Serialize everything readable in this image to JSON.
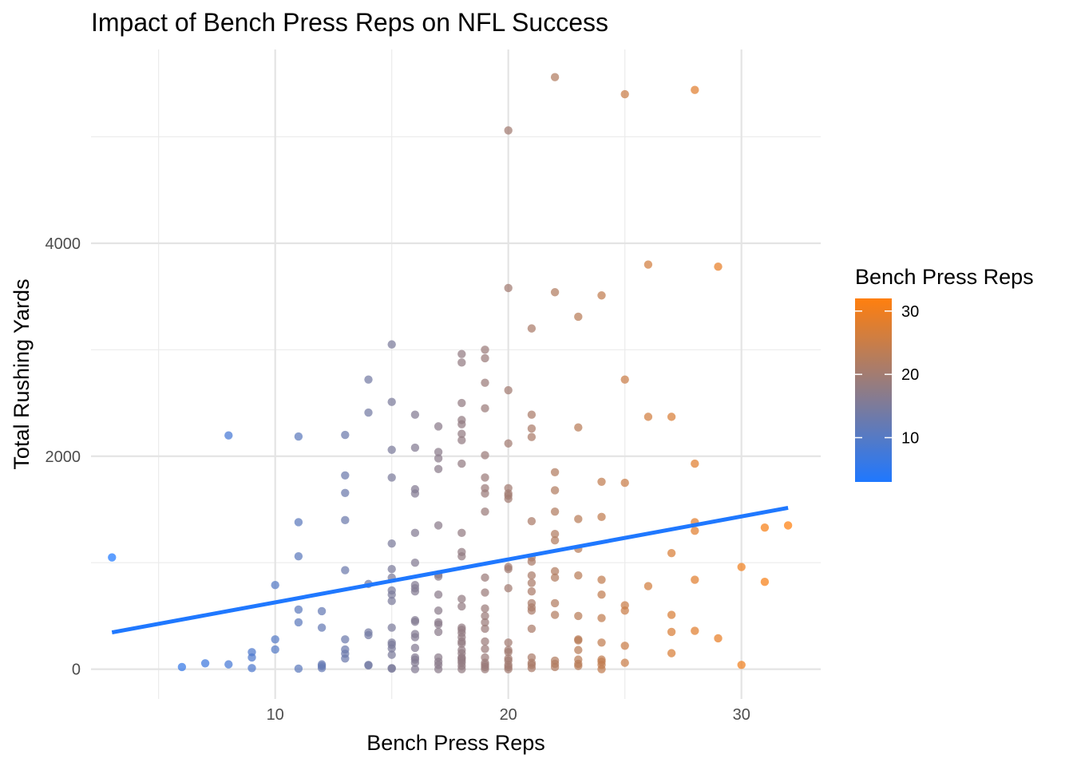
{
  "chart_data": {
    "type": "scatter",
    "title": "Impact of Bench Press Reps on NFL Success",
    "xlabel": "Bench Press Reps",
    "ylabel": "Total Rushing Yards",
    "xlim": [
      2.1,
      33.4
    ],
    "ylim": [
      -280,
      5820
    ],
    "x_ticks": [
      10,
      20,
      30
    ],
    "y_ticks": [
      0,
      2000,
      4000
    ],
    "grid": true,
    "legend": {
      "title": "Bench Press Reps",
      "position": "right",
      "ticks": [
        10,
        20,
        30
      ],
      "range": [
        3,
        32
      ],
      "color_low": "#1f78ff",
      "color_high": "#ff7f0e"
    },
    "trend_line": {
      "color": "#1f78ff",
      "x": [
        3,
        32
      ],
      "y": [
        345,
        1515
      ]
    },
    "points": [
      [
        3,
        1050
      ],
      [
        6,
        20
      ],
      [
        7,
        55
      ],
      [
        8,
        45
      ],
      [
        8,
        2195
      ],
      [
        9,
        10
      ],
      [
        9,
        110
      ],
      [
        9,
        160
      ],
      [
        10,
        280
      ],
      [
        10,
        185
      ],
      [
        10,
        790
      ],
      [
        11,
        5
      ],
      [
        11,
        440
      ],
      [
        11,
        560
      ],
      [
        11,
        1060
      ],
      [
        11,
        1380
      ],
      [
        11,
        2185
      ],
      [
        12,
        10
      ],
      [
        12,
        30
      ],
      [
        12,
        45
      ],
      [
        12,
        390
      ],
      [
        12,
        545
      ],
      [
        13,
        100
      ],
      [
        13,
        145
      ],
      [
        13,
        185
      ],
      [
        13,
        280
      ],
      [
        13,
        930
      ],
      [
        13,
        1400
      ],
      [
        13,
        1655
      ],
      [
        13,
        1820
      ],
      [
        13,
        2200
      ],
      [
        14,
        35
      ],
      [
        14,
        40
      ],
      [
        14,
        320
      ],
      [
        14,
        345
      ],
      [
        14,
        800
      ],
      [
        14,
        2410
      ],
      [
        14,
        2720
      ],
      [
        15,
        5
      ],
      [
        15,
        10
      ],
      [
        15,
        135
      ],
      [
        15,
        195
      ],
      [
        15,
        230
      ],
      [
        15,
        250
      ],
      [
        15,
        390
      ],
      [
        15,
        640
      ],
      [
        15,
        700
      ],
      [
        15,
        740
      ],
      [
        15,
        860
      ],
      [
        15,
        940
      ],
      [
        15,
        1180
      ],
      [
        15,
        1800
      ],
      [
        15,
        2060
      ],
      [
        15,
        2510
      ],
      [
        15,
        3050
      ],
      [
        16,
        0
      ],
      [
        16,
        60
      ],
      [
        16,
        90
      ],
      [
        16,
        110
      ],
      [
        16,
        200
      ],
      [
        16,
        300
      ],
      [
        16,
        330
      ],
      [
        16,
        445
      ],
      [
        16,
        460
      ],
      [
        16,
        730
      ],
      [
        16,
        760
      ],
      [
        16,
        790
      ],
      [
        16,
        1000
      ],
      [
        16,
        1280
      ],
      [
        16,
        1650
      ],
      [
        16,
        1690
      ],
      [
        16,
        2080
      ],
      [
        16,
        2390
      ],
      [
        17,
        0
      ],
      [
        17,
        40
      ],
      [
        17,
        70
      ],
      [
        17,
        110
      ],
      [
        17,
        350
      ],
      [
        17,
        420
      ],
      [
        17,
        440
      ],
      [
        17,
        550
      ],
      [
        17,
        700
      ],
      [
        17,
        870
      ],
      [
        17,
        890
      ],
      [
        17,
        1350
      ],
      [
        17,
        1880
      ],
      [
        17,
        1980
      ],
      [
        17,
        2040
      ],
      [
        17,
        2280
      ],
      [
        18,
        0
      ],
      [
        18,
        30
      ],
      [
        18,
        60
      ],
      [
        18,
        80
      ],
      [
        18,
        100
      ],
      [
        18,
        110
      ],
      [
        18,
        150
      ],
      [
        18,
        180
      ],
      [
        18,
        240
      ],
      [
        18,
        260
      ],
      [
        18,
        300
      ],
      [
        18,
        340
      ],
      [
        18,
        370
      ],
      [
        18,
        390
      ],
      [
        18,
        590
      ],
      [
        18,
        660
      ],
      [
        18,
        1060
      ],
      [
        18,
        1100
      ],
      [
        18,
        1280
      ],
      [
        18,
        1930
      ],
      [
        18,
        2150
      ],
      [
        18,
        2210
      ],
      [
        18,
        2300
      ],
      [
        18,
        2340
      ],
      [
        18,
        2500
      ],
      [
        18,
        2880
      ],
      [
        18,
        2960
      ],
      [
        19,
        0
      ],
      [
        19,
        20
      ],
      [
        19,
        40
      ],
      [
        19,
        60
      ],
      [
        19,
        110
      ],
      [
        19,
        190
      ],
      [
        19,
        260
      ],
      [
        19,
        380
      ],
      [
        19,
        440
      ],
      [
        19,
        500
      ],
      [
        19,
        570
      ],
      [
        19,
        720
      ],
      [
        19,
        860
      ],
      [
        19,
        1480
      ],
      [
        19,
        1650
      ],
      [
        19,
        1700
      ],
      [
        19,
        1800
      ],
      [
        19,
        2010
      ],
      [
        19,
        2450
      ],
      [
        19,
        2690
      ],
      [
        19,
        2920
      ],
      [
        19,
        3000
      ],
      [
        20,
        0
      ],
      [
        20,
        20
      ],
      [
        20,
        40
      ],
      [
        20,
        80
      ],
      [
        20,
        100
      ],
      [
        20,
        160
      ],
      [
        20,
        180
      ],
      [
        20,
        250
      ],
      [
        20,
        760
      ],
      [
        20,
        940
      ],
      [
        20,
        960
      ],
      [
        20,
        1600
      ],
      [
        20,
        1630
      ],
      [
        20,
        1650
      ],
      [
        20,
        1700
      ],
      [
        20,
        2120
      ],
      [
        20,
        2620
      ],
      [
        20,
        3580
      ],
      [
        20,
        5060
      ],
      [
        21,
        10
      ],
      [
        21,
        40
      ],
      [
        21,
        60
      ],
      [
        21,
        110
      ],
      [
        21,
        380
      ],
      [
        21,
        550
      ],
      [
        21,
        580
      ],
      [
        21,
        620
      ],
      [
        21,
        730
      ],
      [
        21,
        810
      ],
      [
        21,
        880
      ],
      [
        21,
        1010
      ],
      [
        21,
        1050
      ],
      [
        21,
        1390
      ],
      [
        21,
        2180
      ],
      [
        21,
        2260
      ],
      [
        21,
        2390
      ],
      [
        21,
        3200
      ],
      [
        22,
        20
      ],
      [
        22,
        50
      ],
      [
        22,
        80
      ],
      [
        22,
        510
      ],
      [
        22,
        620
      ],
      [
        22,
        860
      ],
      [
        22,
        920
      ],
      [
        22,
        1210
      ],
      [
        22,
        1270
      ],
      [
        22,
        1480
      ],
      [
        22,
        1680
      ],
      [
        22,
        1850
      ],
      [
        22,
        3540
      ],
      [
        22,
        5560
      ],
      [
        23,
        30
      ],
      [
        23,
        50
      ],
      [
        23,
        90
      ],
      [
        23,
        180
      ],
      [
        23,
        270
      ],
      [
        23,
        280
      ],
      [
        23,
        500
      ],
      [
        23,
        880
      ],
      [
        23,
        1130
      ],
      [
        23,
        1410
      ],
      [
        23,
        2270
      ],
      [
        23,
        3310
      ],
      [
        24,
        0
      ],
      [
        24,
        40
      ],
      [
        24,
        70
      ],
      [
        24,
        90
      ],
      [
        24,
        250
      ],
      [
        24,
        480
      ],
      [
        24,
        700
      ],
      [
        24,
        840
      ],
      [
        24,
        1430
      ],
      [
        24,
        1760
      ],
      [
        24,
        3510
      ],
      [
        25,
        60
      ],
      [
        25,
        220
      ],
      [
        25,
        550
      ],
      [
        25,
        600
      ],
      [
        25,
        1750
      ],
      [
        25,
        2720
      ],
      [
        25,
        5400
      ],
      [
        26,
        780
      ],
      [
        26,
        2370
      ],
      [
        26,
        3800
      ],
      [
        27,
        150
      ],
      [
        27,
        350
      ],
      [
        27,
        510
      ],
      [
        27,
        1090
      ],
      [
        27,
        2370
      ],
      [
        28,
        360
      ],
      [
        28,
        840
      ],
      [
        28,
        1300
      ],
      [
        28,
        1380
      ],
      [
        28,
        1930
      ],
      [
        28,
        5440
      ],
      [
        29,
        290
      ],
      [
        29,
        3780
      ],
      [
        30,
        40
      ],
      [
        30,
        960
      ],
      [
        31,
        820
      ],
      [
        31,
        1330
      ],
      [
        32,
        1350
      ]
    ]
  }
}
